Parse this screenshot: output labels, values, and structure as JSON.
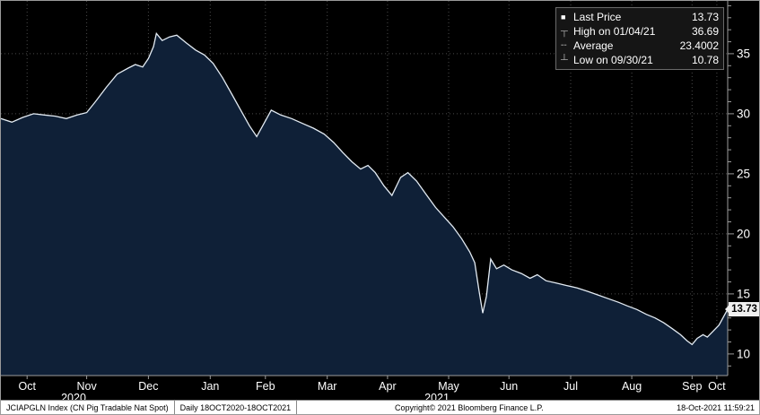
{
  "chart_data": {
    "type": "area",
    "title": "JCIAPGLN Index (CN Pig Tradable Nat Spot)",
    "series_name": "Last Price",
    "ylim": [
      8.2,
      39.4
    ],
    "y_ticks": [
      10,
      15,
      20,
      25,
      30,
      35
    ],
    "x_ticks": [
      {
        "label": "Oct",
        "pos": 0.036
      },
      {
        "label": "Nov",
        "pos": 0.118
      },
      {
        "label": "Dec",
        "pos": 0.203
      },
      {
        "label": "Jan",
        "pos": 0.288
      },
      {
        "label": "Feb",
        "pos": 0.364
      },
      {
        "label": "Mar",
        "pos": 0.449
      },
      {
        "label": "Apr",
        "pos": 0.532
      },
      {
        "label": "May",
        "pos": 0.616
      },
      {
        "label": "Jun",
        "pos": 0.699
      },
      {
        "label": "Jul",
        "pos": 0.784
      },
      {
        "label": "Aug",
        "pos": 0.868
      },
      {
        "label": "Sep",
        "pos": 0.951
      },
      {
        "label": "Oct",
        "pos": 0.985
      }
    ],
    "year_labels": [
      {
        "label": "2020",
        "pos": 0.1
      },
      {
        "label": "2021",
        "pos": 0.6
      }
    ],
    "points": [
      [
        0.0,
        29.6
      ],
      [
        0.015,
        29.3
      ],
      [
        0.03,
        29.7
      ],
      [
        0.045,
        30.0
      ],
      [
        0.06,
        29.9
      ],
      [
        0.075,
        29.8
      ],
      [
        0.09,
        29.6
      ],
      [
        0.105,
        29.9
      ],
      [
        0.118,
        30.1
      ],
      [
        0.13,
        31.0
      ],
      [
        0.145,
        32.2
      ],
      [
        0.16,
        33.3
      ],
      [
        0.175,
        33.8
      ],
      [
        0.185,
        34.1
      ],
      [
        0.195,
        33.9
      ],
      [
        0.203,
        34.6
      ],
      [
        0.21,
        35.6
      ],
      [
        0.214,
        36.69
      ],
      [
        0.222,
        36.1
      ],
      [
        0.232,
        36.4
      ],
      [
        0.242,
        36.55
      ],
      [
        0.255,
        35.9
      ],
      [
        0.268,
        35.3
      ],
      [
        0.28,
        34.9
      ],
      [
        0.292,
        34.2
      ],
      [
        0.305,
        33.0
      ],
      [
        0.318,
        31.6
      ],
      [
        0.33,
        30.3
      ],
      [
        0.342,
        29.0
      ],
      [
        0.352,
        28.1
      ],
      [
        0.362,
        29.2
      ],
      [
        0.372,
        30.3
      ],
      [
        0.385,
        29.9
      ],
      [
        0.4,
        29.6
      ],
      [
        0.415,
        29.2
      ],
      [
        0.43,
        28.8
      ],
      [
        0.445,
        28.3
      ],
      [
        0.458,
        27.6
      ],
      [
        0.47,
        26.8
      ],
      [
        0.483,
        26.0
      ],
      [
        0.495,
        25.4
      ],
      [
        0.505,
        25.7
      ],
      [
        0.515,
        25.1
      ],
      [
        0.527,
        24.0
      ],
      [
        0.538,
        23.2
      ],
      [
        0.55,
        24.7
      ],
      [
        0.56,
        25.1
      ],
      [
        0.572,
        24.4
      ],
      [
        0.585,
        23.3
      ],
      [
        0.598,
        22.2
      ],
      [
        0.61,
        21.4
      ],
      [
        0.622,
        20.6
      ],
      [
        0.634,
        19.6
      ],
      [
        0.645,
        18.5
      ],
      [
        0.652,
        17.6
      ],
      [
        0.658,
        15.2
      ],
      [
        0.663,
        13.4
      ],
      [
        0.668,
        14.8
      ],
      [
        0.674,
        17.9
      ],
      [
        0.682,
        17.1
      ],
      [
        0.692,
        17.4
      ],
      [
        0.703,
        17.0
      ],
      [
        0.716,
        16.7
      ],
      [
        0.728,
        16.3
      ],
      [
        0.738,
        16.6
      ],
      [
        0.75,
        16.1
      ],
      [
        0.764,
        15.9
      ],
      [
        0.778,
        15.7
      ],
      [
        0.793,
        15.5
      ],
      [
        0.808,
        15.2
      ],
      [
        0.822,
        14.9
      ],
      [
        0.836,
        14.6
      ],
      [
        0.85,
        14.3
      ],
      [
        0.862,
        14.0
      ],
      [
        0.875,
        13.7
      ],
      [
        0.888,
        13.3
      ],
      [
        0.9,
        13.0
      ],
      [
        0.912,
        12.6
      ],
      [
        0.924,
        12.1
      ],
      [
        0.935,
        11.6
      ],
      [
        0.944,
        11.1
      ],
      [
        0.951,
        10.78
      ],
      [
        0.958,
        11.3
      ],
      [
        0.966,
        11.6
      ],
      [
        0.972,
        11.4
      ],
      [
        0.98,
        11.9
      ],
      [
        0.988,
        12.4
      ],
      [
        1.0,
        13.73
      ]
    ],
    "last_price": 13.73,
    "last_price_label": "13.73",
    "stats": {
      "high_date": "01/04/21",
      "high": 36.69,
      "average": 23.4002,
      "low_date": "09/30/21",
      "low": 10.78
    },
    "colors": {
      "area_fill": "#0f2037",
      "line": "#e3ebf3",
      "grid": "#4a4a4a",
      "axis": "#9b9b9b",
      "label": "#ffffff",
      "badge_bg": "#f0f0f0"
    }
  },
  "legend": {
    "rows": [
      {
        "icon": "■",
        "label": "Last Price",
        "value": "13.73"
      },
      {
        "icon": "┬",
        "label": "High on 01/04/21",
        "value": "36.69"
      },
      {
        "icon": "╌",
        "label": "Average",
        "value": "23.4002"
      },
      {
        "icon": "┴",
        "label": "Low on 09/30/21",
        "value": "10.78"
      }
    ]
  },
  "footer": {
    "ticker": "JCIAPGLN Index (CN Pig Tradable Nat Spot)",
    "range": "Daily 18OCT2020-18OCT2021",
    "copyright": "Copyright© 2021 Bloomberg Finance L.P.",
    "timestamp": "18-Oct-2021 11:59:21"
  }
}
